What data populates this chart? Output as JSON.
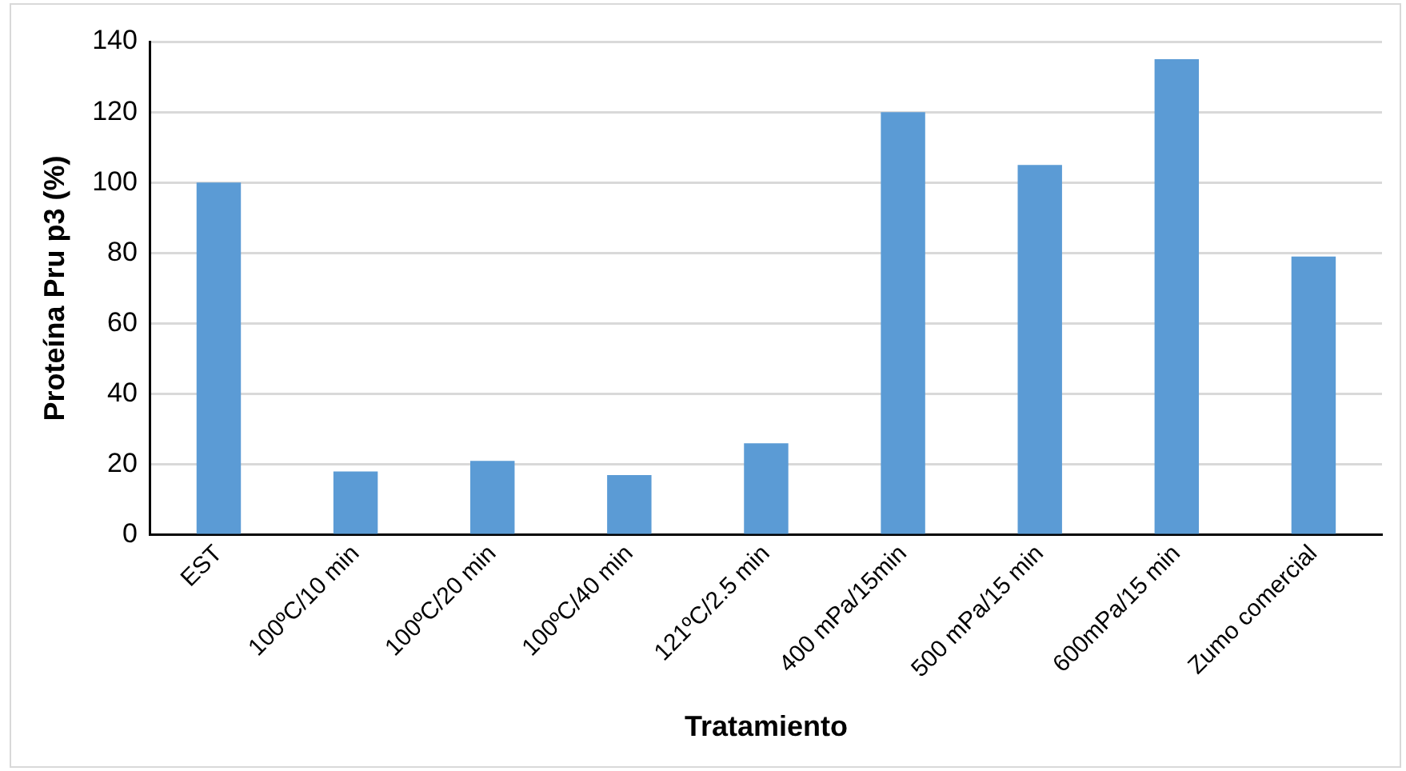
{
  "chart_data": {
    "type": "bar",
    "xlabel": "Tratamiento",
    "ylabel": "Proteína Pru p3 (%)",
    "categories": [
      "EST",
      "100ºC/10 min",
      "100ºC/20 min",
      "100ºC/40 min",
      "121ºC/2.5 min",
      "400 mPa/15min",
      "500 mPa/15 min",
      "600mPa/15 min",
      "Zumo comercial"
    ],
    "values": [
      100,
      18,
      21,
      17,
      26,
      120,
      105,
      135,
      79
    ],
    "color": "#5b9bd5",
    "ylim": [
      0,
      140
    ],
    "yticks": [
      0,
      20,
      40,
      60,
      80,
      100,
      120,
      140
    ],
    "grid": "y",
    "legend": false
  }
}
